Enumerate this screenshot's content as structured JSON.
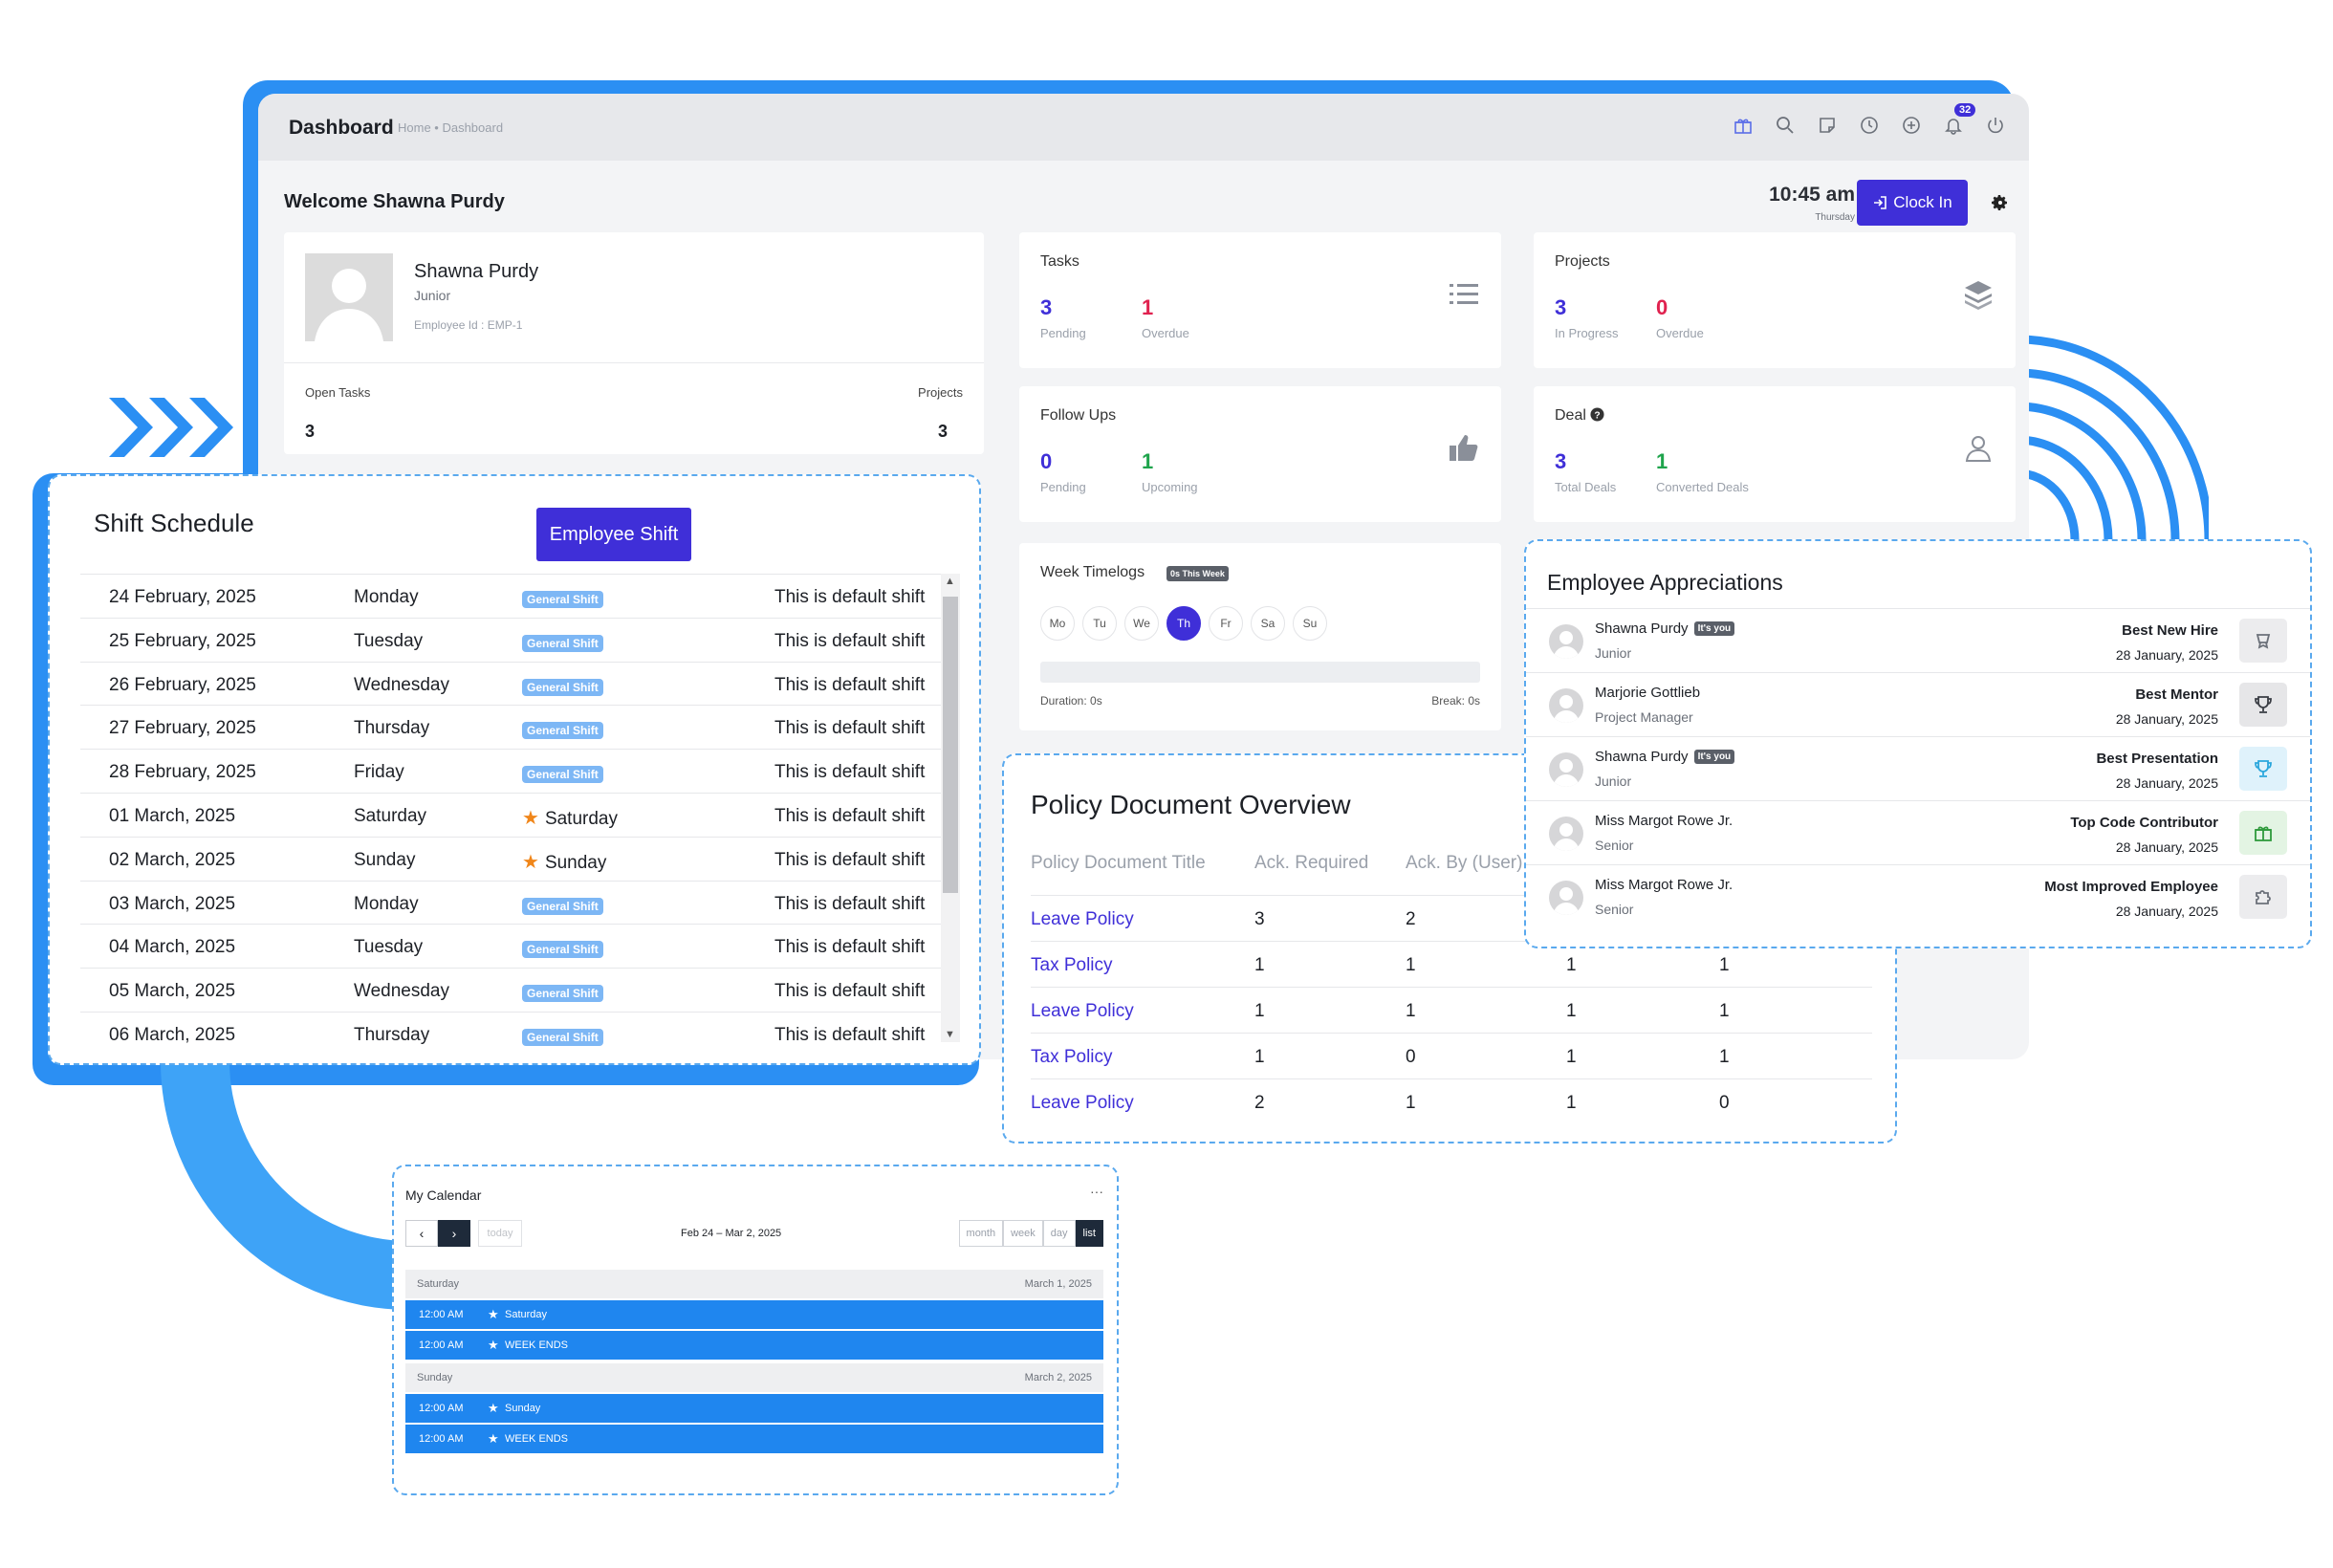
{
  "dashboard": {
    "title": "Dashboard",
    "breadcrumb": "Home • Dashboard",
    "notification_count": "32",
    "welcome": "Welcome Shawna Purdy",
    "clock_time": "10:45 am",
    "clock_day": "Thursday",
    "clock_in_label": "Clock In"
  },
  "profile": {
    "name": "Shawna Purdy",
    "role": "Junior",
    "employee_id": "Employee Id : EMP-1",
    "open_tasks_label": "Open Tasks",
    "open_tasks_value": "3",
    "projects_label": "Projects",
    "projects_value": "3"
  },
  "stats": {
    "tasks": {
      "title": "Tasks",
      "v1": "3",
      "l1": "Pending",
      "v2": "1",
      "l2": "Overdue"
    },
    "projects": {
      "title": "Projects",
      "v1": "3",
      "l1": "In Progress",
      "v2": "0",
      "l2": "Overdue"
    },
    "followups": {
      "title": "Follow Ups",
      "v1": "0",
      "l1": "Pending",
      "v2": "1",
      "l2": "Upcoming"
    },
    "deal": {
      "title": "Deal",
      "v1": "3",
      "l1": "Total Deals",
      "v2": "1",
      "l2": "Converted Deals"
    }
  },
  "timelogs": {
    "title": "Week Timelogs",
    "badge": "0s This Week",
    "days": [
      "Mo",
      "Tu",
      "We",
      "Th",
      "Fr",
      "Sa",
      "Su"
    ],
    "active_day": "Th",
    "duration": "Duration: 0s",
    "break": "Break: 0s"
  },
  "shift_schedule": {
    "title": "Shift Schedule",
    "button": "Employee Shift",
    "rows": [
      {
        "date": "24 February, 2025",
        "day": "Monday",
        "shift": "General Shift",
        "holiday": false,
        "note": "This is default shift"
      },
      {
        "date": "25 February, 2025",
        "day": "Tuesday",
        "shift": "General Shift",
        "holiday": false,
        "note": "This is default shift"
      },
      {
        "date": "26 February, 2025",
        "day": "Wednesday",
        "shift": "General Shift",
        "holiday": false,
        "note": "This is default shift"
      },
      {
        "date": "27 February, 2025",
        "day": "Thursday",
        "shift": "General Shift",
        "holiday": false,
        "note": "This is default shift"
      },
      {
        "date": "28 February, 2025",
        "day": "Friday",
        "shift": "General Shift",
        "holiday": false,
        "note": "This is default shift"
      },
      {
        "date": "01 March, 2025",
        "day": "Saturday",
        "shift": "Saturday",
        "holiday": true,
        "note": "This is default shift"
      },
      {
        "date": "02 March, 2025",
        "day": "Sunday",
        "shift": "Sunday",
        "holiday": true,
        "note": "This is default shift"
      },
      {
        "date": "03 March, 2025",
        "day": "Monday",
        "shift": "General Shift",
        "holiday": false,
        "note": "This is default shift"
      },
      {
        "date": "04 March, 2025",
        "day": "Tuesday",
        "shift": "General Shift",
        "holiday": false,
        "note": "This is default shift"
      },
      {
        "date": "05 March, 2025",
        "day": "Wednesday",
        "shift": "General Shift",
        "holiday": false,
        "note": "This is default shift"
      },
      {
        "date": "06 March, 2025",
        "day": "Thursday",
        "shift": "General Shift",
        "holiday": false,
        "note": "This is default shift"
      }
    ]
  },
  "policy": {
    "title": "Policy Document Overview",
    "headers": [
      "Policy Document Title",
      "Ack. Required",
      "Ack. By (User)",
      "",
      ""
    ],
    "rows": [
      [
        "Leave Policy",
        "3",
        "2",
        "",
        ""
      ],
      [
        "Tax Policy",
        "1",
        "1",
        "1",
        "1"
      ],
      [
        "Leave Policy",
        "1",
        "1",
        "1",
        "1"
      ],
      [
        "Tax Policy",
        "1",
        "0",
        "1",
        "1"
      ],
      [
        "Leave Policy",
        "2",
        "1",
        "1",
        "0"
      ]
    ]
  },
  "appreciations": {
    "title": "Employee Appreciations",
    "you_badge": "It's you",
    "rows": [
      {
        "name": "Shawna Purdy",
        "you": true,
        "role": "Junior",
        "award": "Best New Hire",
        "date": "28 January, 2025",
        "icon": "medal-icon",
        "bg": "#ececee",
        "fg": "#6b7079"
      },
      {
        "name": "Marjorie Gottlieb",
        "you": false,
        "role": "Project Manager",
        "award": "Best Mentor",
        "date": "28 January, 2025",
        "icon": "trophy-icon",
        "bg": "#e6e6e8",
        "fg": "#3a3d44"
      },
      {
        "name": "Shawna Purdy",
        "you": true,
        "role": "Junior",
        "award": "Best Presentation",
        "date": "28 January, 2025",
        "icon": "trophy-icon",
        "bg": "#dff2fb",
        "fg": "#2aa6dc"
      },
      {
        "name": "Miss Margot Rowe Jr.",
        "you": false,
        "role": "Senior",
        "award": "Top Code Contributor",
        "date": "28 January, 2025",
        "icon": "gift-icon",
        "bg": "#e3f4e3",
        "fg": "#2f9a3c"
      },
      {
        "name": "Miss Margot Rowe Jr.",
        "you": false,
        "role": "Senior",
        "award": "Most Improved Employee",
        "date": "28 January, 2025",
        "icon": "puzzle-icon",
        "bg": "#ececee",
        "fg": "#6b7079"
      }
    ]
  },
  "calendar": {
    "title": "My Calendar",
    "more": "···",
    "today": "today",
    "range": "Feb 24 – Mar 2, 2025",
    "views": [
      "month",
      "week",
      "day",
      "list"
    ],
    "active_view": "list",
    "groups": [
      {
        "day": "Saturday",
        "date": "March 1, 2025",
        "events": [
          {
            "time": "12:00 AM",
            "title": "Saturday"
          },
          {
            "time": "12:00 AM",
            "title": "WEEK ENDS"
          }
        ]
      },
      {
        "day": "Sunday",
        "date": "March 2, 2025",
        "events": [
          {
            "time": "12:00 AM",
            "title": "Sunday"
          },
          {
            "time": "12:00 AM",
            "title": "WEEK ENDS"
          }
        ]
      }
    ]
  },
  "colors": {
    "accent": "#3f2fd8",
    "frame": "#2b8ff3",
    "event": "#1f86ef"
  }
}
